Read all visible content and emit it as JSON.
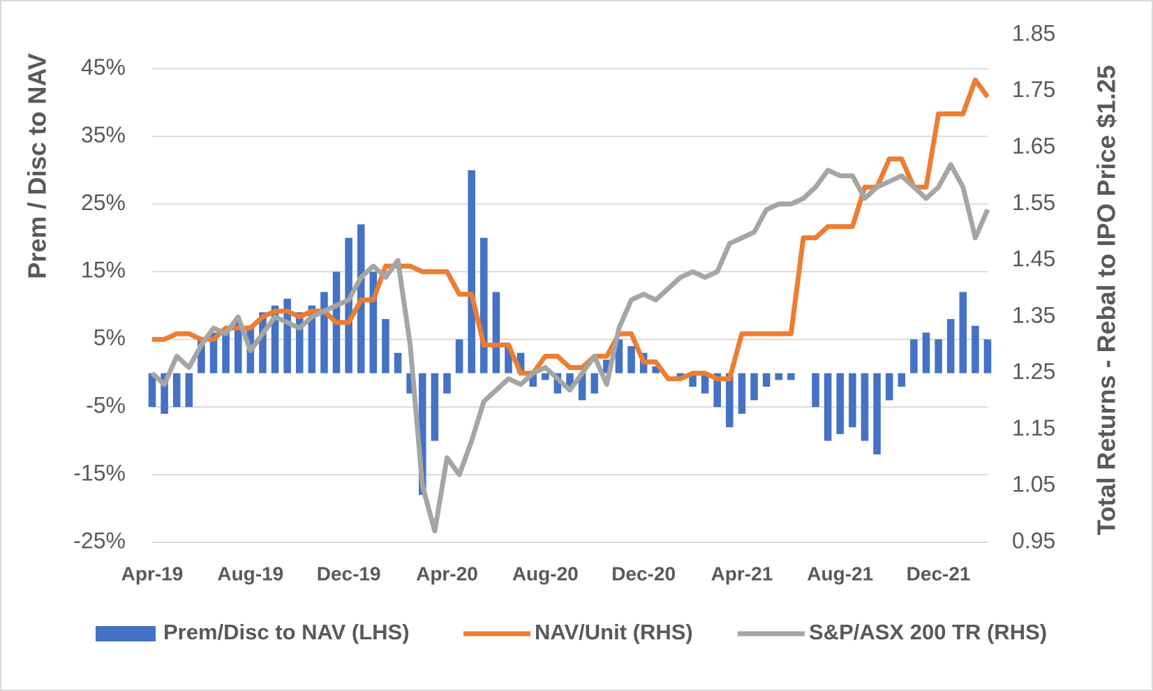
{
  "chart_data": {
    "type": "combo",
    "y_label": "Prem / Disc to NAV",
    "y2_label": "Total Returns - Rebal to IPO Price $1.25",
    "categories": [
      "Apr-19",
      null,
      null,
      null,
      null,
      null,
      null,
      null,
      "Aug-19",
      null,
      null,
      null,
      null,
      null,
      null,
      null,
      "Dec-19",
      null,
      null,
      null,
      null,
      null,
      null,
      null,
      "Apr-20",
      null,
      null,
      null,
      null,
      null,
      null,
      null,
      "Aug-20",
      null,
      null,
      null,
      null,
      null,
      null,
      null,
      "Dec-20",
      null,
      null,
      null,
      null,
      null,
      null,
      null,
      "Apr-21",
      null,
      null,
      null,
      null,
      null,
      null,
      null,
      "Aug-21",
      null,
      null,
      null,
      null,
      null,
      null,
      null,
      "Dec-21",
      null,
      null,
      null,
      null
    ],
    "series": [
      {
        "name": "Prem/Disc to NAV (LHS)",
        "type": "bar",
        "axis": "y",
        "color": "#4472c4",
        "values": [
          -5,
          -6,
          -5,
          -5,
          5,
          6,
          6,
          8,
          7,
          9,
          10,
          11,
          9,
          10,
          12,
          15,
          20,
          22,
          15,
          8,
          3,
          -3,
          -18,
          -10,
          -3,
          5,
          30,
          20,
          12,
          4,
          3,
          -2,
          -1,
          -3,
          -2,
          -4,
          -3,
          2,
          5,
          4,
          3,
          1,
          0,
          -1,
          -2,
          -3,
          -5,
          -8,
          -6,
          -4,
          -2,
          -1,
          -1,
          0,
          -5,
          -10,
          -9,
          -8,
          -10,
          -12,
          -4,
          -2,
          5,
          6,
          5,
          8,
          12,
          7,
          5
        ]
      },
      {
        "name": "NAV/Unit (RHS)",
        "type": "line",
        "axis": "y2",
        "color": "#ed7d31",
        "values": [
          1.31,
          1.31,
          1.32,
          1.32,
          1.31,
          1.31,
          1.33,
          1.33,
          1.33,
          1.35,
          1.36,
          1.36,
          1.35,
          1.36,
          1.36,
          1.34,
          1.34,
          1.38,
          1.38,
          1.44,
          1.44,
          1.44,
          1.43,
          1.43,
          1.43,
          1.39,
          1.39,
          1.3,
          1.3,
          1.3,
          1.25,
          1.25,
          1.28,
          1.28,
          1.26,
          1.26,
          1.28,
          1.28,
          1.32,
          1.32,
          1.27,
          1.27,
          1.24,
          1.24,
          1.25,
          1.25,
          1.24,
          1.24,
          1.32,
          1.32,
          1.32,
          1.32,
          1.32,
          1.49,
          1.49,
          1.51,
          1.51,
          1.51,
          1.58,
          1.58,
          1.63,
          1.63,
          1.58,
          1.58,
          1.71,
          1.71,
          1.71,
          1.77,
          1.74
        ]
      },
      {
        "name": "S&P/ASX 200 TR (RHS)",
        "type": "line",
        "axis": "y2",
        "color": "#a5a5a5",
        "values": [
          1.25,
          1.23,
          1.28,
          1.26,
          1.3,
          1.33,
          1.32,
          1.35,
          1.29,
          1.32,
          1.35,
          1.34,
          1.33,
          1.35,
          1.36,
          1.37,
          1.38,
          1.42,
          1.44,
          1.42,
          1.45,
          1.3,
          1.05,
          0.97,
          1.1,
          1.07,
          1.13,
          1.2,
          1.22,
          1.24,
          1.23,
          1.25,
          1.26,
          1.24,
          1.22,
          1.25,
          1.28,
          1.23,
          1.33,
          1.38,
          1.39,
          1.38,
          1.4,
          1.42,
          1.43,
          1.42,
          1.43,
          1.48,
          1.49,
          1.5,
          1.54,
          1.55,
          1.55,
          1.56,
          1.58,
          1.61,
          1.6,
          1.6,
          1.56,
          1.58,
          1.59,
          1.6,
          1.58,
          1.56,
          1.58,
          1.62,
          1.58,
          1.49,
          1.54
        ]
      }
    ],
    "ylim": [
      -25,
      50
    ],
    "yticks": [
      {
        "value": -25,
        "label": "-25%"
      },
      {
        "value": -15,
        "label": "-15%"
      },
      {
        "value": -5,
        "label": "-5%"
      },
      {
        "value": 5,
        "label": "5%"
      },
      {
        "value": 15,
        "label": "15%"
      },
      {
        "value": 25,
        "label": "25%"
      },
      {
        "value": 35,
        "label": "35%"
      },
      {
        "value": 45,
        "label": "45%"
      }
    ],
    "y2lim": [
      0.95,
      1.85
    ],
    "y2ticks": [
      0.95,
      1.05,
      1.15,
      1.25,
      1.35,
      1.45,
      1.55,
      1.65,
      1.75,
      1.85
    ],
    "grid": true,
    "legend": "bottom"
  }
}
